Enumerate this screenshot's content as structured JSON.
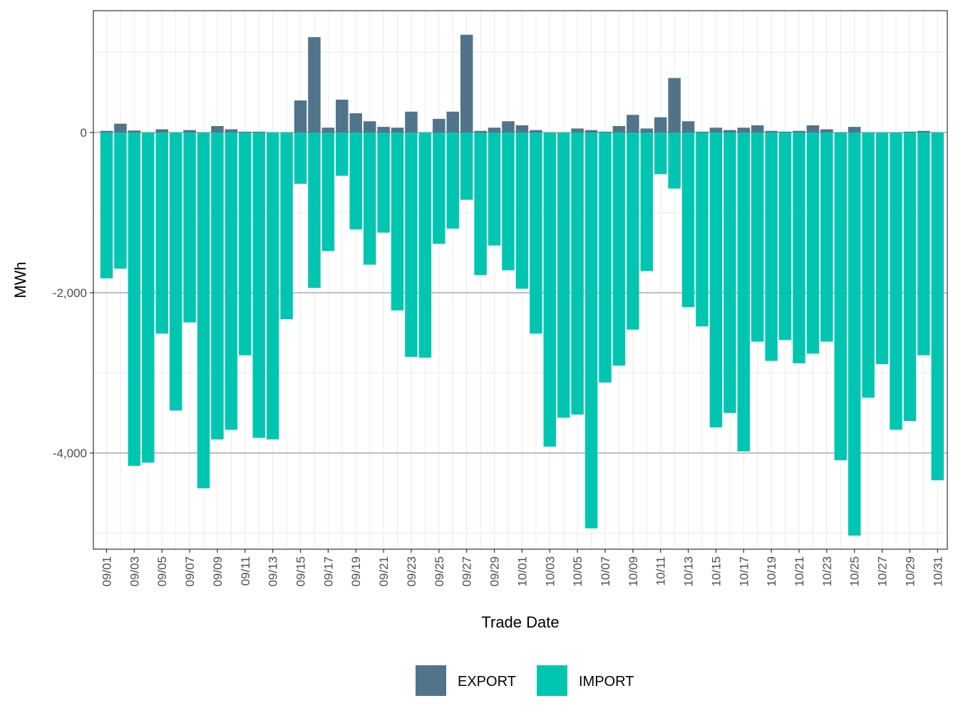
{
  "chart_data": {
    "type": "bar",
    "stacked": true,
    "xlabel": "Trade Date",
    "ylabel": "MWh",
    "ylim": [
      -5200,
      1520
    ],
    "y_major_ticks": [
      0,
      -2000,
      -4000
    ],
    "y_tick_labels": [
      "0",
      "-2,000",
      "-4,000"
    ],
    "grid": true,
    "legend_position": "bottom",
    "categories": [
      "09/01",
      "09/02",
      "09/03",
      "09/04",
      "09/05",
      "09/06",
      "09/07",
      "09/08",
      "09/09",
      "09/10",
      "09/11",
      "09/12",
      "09/13",
      "09/14",
      "09/15",
      "09/16",
      "09/17",
      "09/18",
      "09/19",
      "09/20",
      "09/21",
      "09/22",
      "09/23",
      "09/24",
      "09/25",
      "09/26",
      "09/27",
      "09/28",
      "09/29",
      "09/30",
      "10/01",
      "10/02",
      "10/03",
      "10/04",
      "10/05",
      "10/06",
      "10/07",
      "10/08",
      "10/09",
      "10/10",
      "10/11",
      "10/12",
      "10/13",
      "10/14",
      "10/15",
      "10/16",
      "10/17",
      "10/18",
      "10/19",
      "10/20",
      "10/21",
      "10/22",
      "10/23",
      "10/24",
      "10/25",
      "10/26",
      "10/27",
      "10/28",
      "10/29",
      "10/30",
      "10/31"
    ],
    "x_tick_labels": [
      "09/01",
      "09/03",
      "09/05",
      "09/07",
      "09/09",
      "09/11",
      "09/13",
      "09/15",
      "09/17",
      "09/19",
      "09/21",
      "09/23",
      "09/25",
      "09/27",
      "09/29",
      "10/01",
      "10/03",
      "10/05",
      "10/07",
      "10/09",
      "10/11",
      "10/13",
      "10/15",
      "10/17",
      "10/19",
      "10/21",
      "10/23",
      "10/25",
      "10/27",
      "10/29",
      "10/31"
    ],
    "series": [
      {
        "name": "EXPORT",
        "color": "#51748a",
        "values": [
          20,
          110,
          25,
          0,
          40,
          0,
          30,
          0,
          80,
          40,
          10,
          10,
          0,
          0,
          400,
          1190,
          60,
          410,
          240,
          140,
          70,
          60,
          260,
          0,
          170,
          260,
          1220,
          20,
          60,
          140,
          90,
          30,
          0,
          0,
          50,
          30,
          10,
          80,
          220,
          50,
          190,
          680,
          140,
          10,
          60,
          30,
          60,
          90,
          20,
          10,
          20,
          90,
          40,
          0,
          70,
          0,
          0,
          0,
          10,
          20,
          0
        ]
      },
      {
        "name": "IMPORT",
        "color": "#00c6b1",
        "values": [
          -1820,
          -1700,
          -4160,
          -4120,
          -2510,
          -3470,
          -2370,
          -4440,
          -3830,
          -3710,
          -2780,
          -3810,
          -3830,
          -2330,
          -640,
          -1940,
          -1480,
          -540,
          -1210,
          -1650,
          -1250,
          -2220,
          -2800,
          -2810,
          -1390,
          -1200,
          -840,
          -1780,
          -1410,
          -1720,
          -1950,
          -2510,
          -3920,
          -3560,
          -3520,
          -4940,
          -3120,
          -2910,
          -2460,
          -1730,
          -520,
          -700,
          -2180,
          -2420,
          -3680,
          -3500,
          -3980,
          -2610,
          -2850,
          -2590,
          -2880,
          -2760,
          -2610,
          -4090,
          -5030,
          -3310,
          -2890,
          -3710,
          -3600,
          -2780,
          -4340
        ]
      }
    ]
  }
}
